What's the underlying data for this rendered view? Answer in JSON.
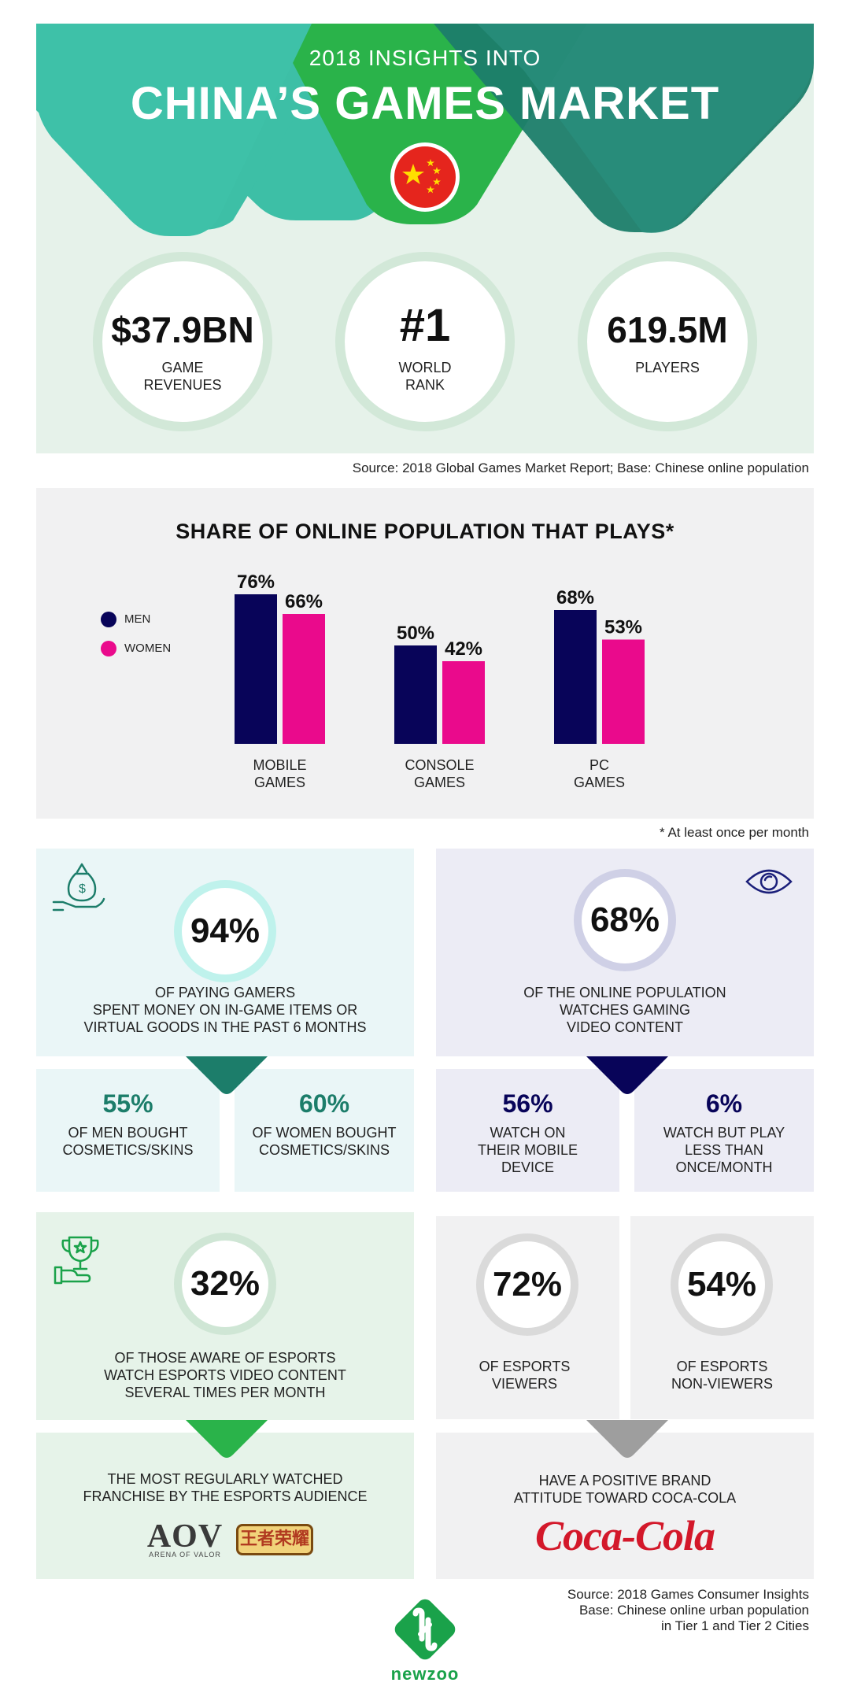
{
  "colors": {
    "teal_light": "#3dbfa6",
    "teal_dark": "#1c7d6a",
    "green": "#2ab34a",
    "navy": "#080459",
    "pink": "#ea0a8c",
    "coca_red": "#d3182a",
    "newzoo_green": "#1aa24a"
  },
  "header": {
    "subtitle": "2018 INSIGHTS INTO",
    "title": "CHINA’S GAMES MARKET",
    "flag_icon": "china-flag-icon"
  },
  "stats": [
    {
      "value": "$37.9BN",
      "label_line1": "GAME",
      "label_line2": "REVENUES"
    },
    {
      "value": "#1",
      "label_line1": "WORLD",
      "label_line2": "RANK"
    },
    {
      "value": "619.5M",
      "label_line1": "PLAYERS",
      "label_line2": ""
    }
  ],
  "source_top": "Source: 2018 Global Games Market Report; Base: Chinese online population",
  "chart_data": {
    "type": "bar",
    "title": "SHARE OF ONLINE POPULATION THAT PLAYS*",
    "categories": [
      "MOBILE GAMES",
      "CONSOLE GAMES",
      "PC GAMES"
    ],
    "category_lines": [
      [
        "MOBILE",
        "GAMES"
      ],
      [
        "CONSOLE",
        "GAMES"
      ],
      [
        "PC",
        "GAMES"
      ]
    ],
    "series": [
      {
        "name": "MEN",
        "values": [
          76,
          50,
          68
        ],
        "labels": [
          "76%",
          "50%",
          "68%"
        ],
        "color": "#080459"
      },
      {
        "name": "WOMEN",
        "values": [
          66,
          42,
          53
        ],
        "labels": [
          "66%",
          "42%",
          "53%"
        ],
        "color": "#ea0a8c"
      }
    ],
    "ylim": [
      0,
      100
    ],
    "grid": false,
    "legend": "left"
  },
  "chart_footnote": "* At least once per month",
  "spending": {
    "icon": "money-bag-hand-icon",
    "pct": "94%",
    "text_lines": [
      "OF PAYING GAMERS",
      "SPENT MONEY ON IN-GAME ITEMS OR",
      "VIRTUAL GOODS IN THE PAST 6 MONTHS"
    ],
    "men_pct": "55%",
    "men_lines": [
      "OF MEN BOUGHT",
      "COSMETICS/SKINS"
    ],
    "women_pct": "60%",
    "women_lines": [
      "OF WOMEN BOUGHT",
      "COSMETICS/SKINS"
    ]
  },
  "video": {
    "icon": "eye-icon",
    "pct": "68%",
    "text_lines": [
      "OF THE ONLINE POPULATION",
      "WATCHES GAMING",
      "VIDEO CONTENT"
    ],
    "mobile_pct": "56%",
    "mobile_lines": [
      "WATCH ON",
      "THEIR MOBILE",
      "DEVICE"
    ],
    "rare_pct": "6%",
    "rare_lines": [
      "WATCH BUT PLAY",
      "LESS THAN",
      "ONCE/MONTH"
    ]
  },
  "esports": {
    "icon": "trophy-hand-icon",
    "pct": "32%",
    "text_lines": [
      "OF THOSE AWARE OF ESPORTS",
      "WATCH ESPORTS VIDEO CONTENT",
      "SEVERAL TIMES PER MONTH"
    ],
    "franchise_lines": [
      "THE MOST REGULARLY WATCHED",
      "FRANCHISE BY THE ESPORTS AUDIENCE"
    ],
    "aov_logo": "AOV",
    "aov_sub": "ARENA OF VALOR",
    "wzry_logo": "王者荣耀"
  },
  "brand": {
    "viewers_pct": "72%",
    "viewers_lines": [
      "OF ESPORTS",
      "VIEWERS"
    ],
    "nonviewers_pct": "54%",
    "nonviewers_lines": [
      "OF ESPORTS",
      "NON-VIEWERS"
    ],
    "attitude_lines": [
      "HAVE A POSITIVE BRAND",
      "ATTITUDE TOWARD COCA-COLA"
    ],
    "coca_logo": "Coca-Cola"
  },
  "source_bottom": [
    "Source: 2018 Games Consumer Insights",
    "Base: Chinese online urban population",
    "in Tier 1 and Tier 2 Cities"
  ],
  "footer": {
    "brand": "newzoo"
  }
}
